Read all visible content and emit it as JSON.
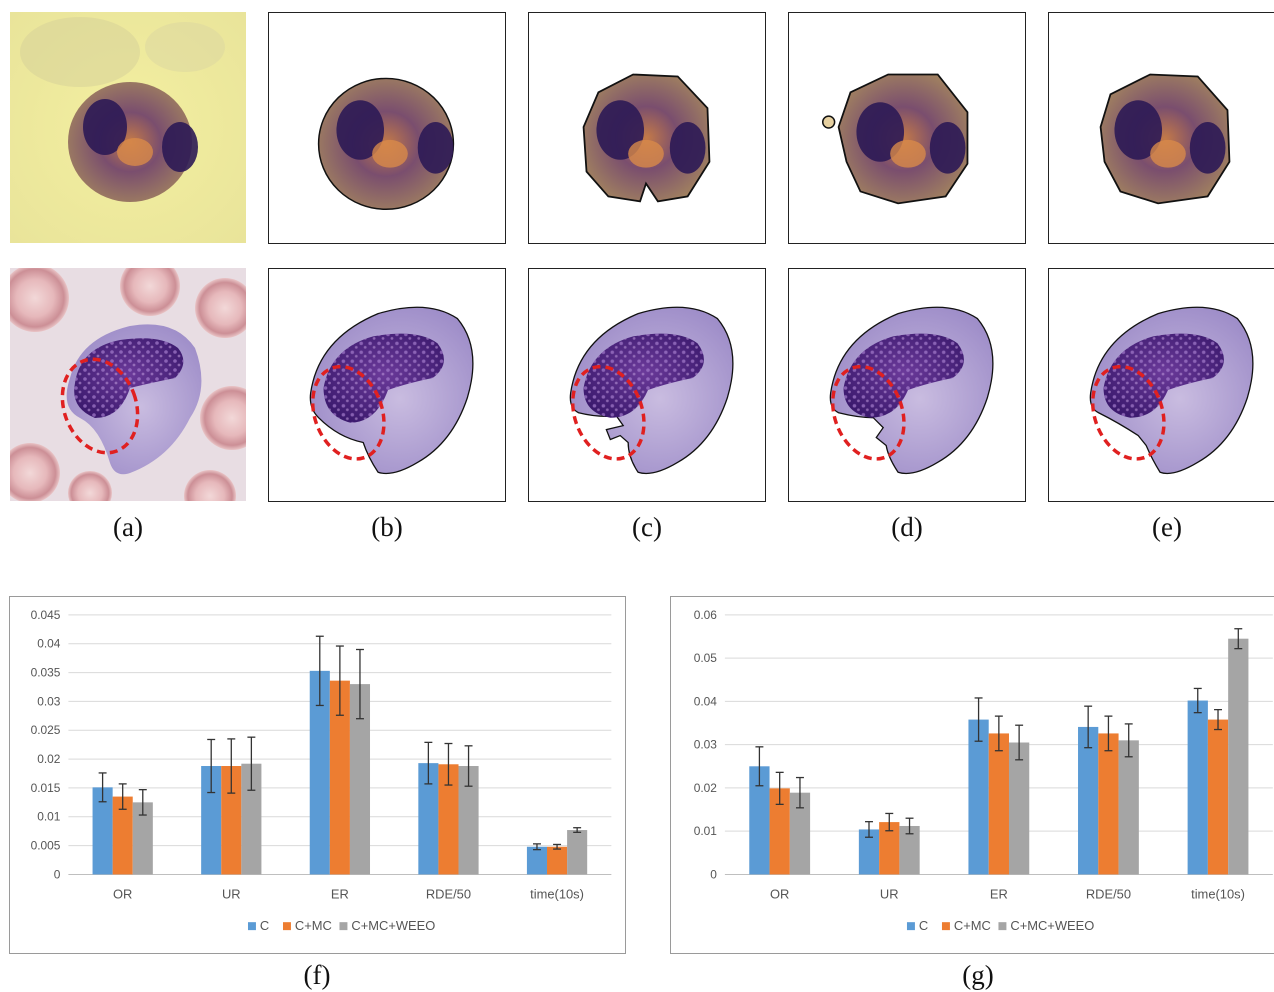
{
  "figure": {
    "captions": [
      "(a)",
      "(b)",
      "(c)",
      "(d)",
      "(e)",
      "(f)",
      "(g)"
    ]
  },
  "colors": {
    "C": "#5b9bd5",
    "C+MC": "#ed7d31",
    "C+MC+WEEO": "#a5a5a5",
    "highlight": "#e02020"
  },
  "chart_data": [
    {
      "type": "bar",
      "categories": [
        "OR",
        "UR",
        "ER",
        "RDE/50",
        "time(10s)"
      ],
      "ylim": [
        0,
        0.045
      ],
      "yticks": [
        "0.045",
        "0.04",
        "0.035",
        "0.03",
        "0.025",
        "0.02",
        "0.015",
        "0.01",
        "0.005",
        "0"
      ],
      "ytick_values": [
        0.045,
        0.04,
        0.035,
        0.03,
        0.025,
        0.02,
        0.015,
        0.01,
        0.005,
        0
      ],
      "legend_position": "bottom",
      "grid": true,
      "series": [
        {
          "name": "C",
          "values": [
            0.0151,
            0.0188,
            0.0353,
            0.0193,
            0.0048
          ],
          "errors": [
            0.0025,
            0.0046,
            0.006,
            0.0036,
            0.0005
          ]
        },
        {
          "name": "C+MC",
          "values": [
            0.0135,
            0.0188,
            0.0336,
            0.0191,
            0.0048
          ],
          "errors": [
            0.0022,
            0.0047,
            0.006,
            0.0036,
            0.0004
          ]
        },
        {
          "name": "C+MC+WEEO",
          "values": [
            0.0125,
            0.0192,
            0.033,
            0.0188,
            0.0077
          ],
          "errors": [
            0.0022,
            0.0046,
            0.006,
            0.0035,
            0.0004
          ]
        }
      ]
    },
    {
      "type": "bar",
      "categories": [
        "OR",
        "UR",
        "ER",
        "RDE/50",
        "time(10s)"
      ],
      "ylim": [
        0,
        0.06
      ],
      "yticks": [
        "0.06",
        "0.05",
        "0.04",
        "0.03",
        "0.02",
        "0.01",
        "0"
      ],
      "ytick_values": [
        0.06,
        0.05,
        0.04,
        0.03,
        0.02,
        0.01,
        0
      ],
      "legend_position": "bottom",
      "grid": true,
      "series": [
        {
          "name": "C",
          "values": [
            0.025,
            0.0104,
            0.0358,
            0.0341,
            0.0402
          ],
          "errors": [
            0.0045,
            0.0018,
            0.005,
            0.0048,
            0.0028
          ]
        },
        {
          "name": "C+MC",
          "values": [
            0.0199,
            0.0121,
            0.0326,
            0.0326,
            0.0358
          ],
          "errors": [
            0.0037,
            0.002,
            0.004,
            0.004,
            0.0023
          ]
        },
        {
          "name": "C+MC+WEEO",
          "values": [
            0.0189,
            0.0112,
            0.0305,
            0.031,
            0.0545
          ],
          "errors": [
            0.0035,
            0.0018,
            0.004,
            0.0038,
            0.0023
          ]
        }
      ]
    }
  ]
}
